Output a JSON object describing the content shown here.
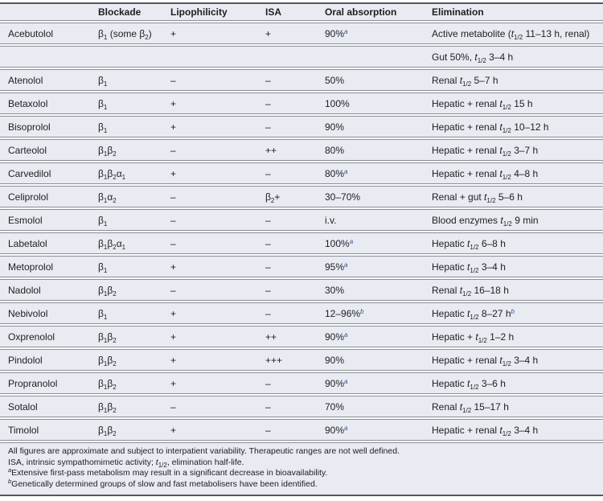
{
  "table": {
    "columns": [
      {
        "label": ""
      },
      {
        "label": "Blockade"
      },
      {
        "label": "Lipophilicity"
      },
      {
        "label": "ISA"
      },
      {
        "label": "Oral absorption"
      },
      {
        "label": "Elimination"
      }
    ],
    "rows": [
      {
        "cells": [
          "Acebutolol",
          "β~1~ (some β~2~)",
          "+",
          "+",
          "90%^a^",
          "Active metabolite (*t*~1/2~ 11–13 h, renal)"
        ]
      },
      {
        "cells": [
          "",
          "",
          "",
          "",
          "",
          "Gut 50%, *t*~1/2~ 3–4 h"
        ]
      },
      {
        "cells": [
          "Atenolol",
          "β~1~",
          "–",
          "–",
          "50%",
          "Renal *t*~1/2~ 5–7 h"
        ]
      },
      {
        "cells": [
          "Betaxolol",
          "β~1~",
          "+",
          "–",
          "100%",
          "Hepatic + renal *t*~1/2~ 15 h"
        ]
      },
      {
        "cells": [
          "Bisoprolol",
          "β~1~",
          "+",
          "–",
          "90%",
          "Hepatic + renal *t*~1/2~ 10–12 h"
        ]
      },
      {
        "cells": [
          "Carteolol",
          "β~1~β~2~",
          "–",
          "++",
          "80%",
          "Hepatic + renal *t*~1/2~ 3–7 h"
        ]
      },
      {
        "cells": [
          "Carvedilol",
          "β~1~β~2~α~1~",
          "+",
          "–",
          "80%^a^",
          "Hepatic + renal *t*~1/2~ 4–8 h"
        ]
      },
      {
        "cells": [
          "Celiprolol",
          "β~1~α~2~",
          "–",
          "β~2~+",
          "30–70%",
          "Renal + gut *t*~1/2~ 5–6 h"
        ]
      },
      {
        "cells": [
          "Esmolol",
          "β~1~",
          "–",
          "–",
          "i.v.",
          "Blood enzymes *t*~1/2~ 9 min"
        ]
      },
      {
        "cells": [
          "Labetalol",
          "β~1~β~2~α~1~",
          "–",
          "–",
          "100%^a^",
          "Hepatic *t*~1/2~ 6–8 h"
        ]
      },
      {
        "cells": [
          "Metoprolol",
          "β~1~",
          "+",
          "–",
          "95%^a^",
          "Hepatic *t*~1/2~ 3–4 h"
        ]
      },
      {
        "cells": [
          "Nadolol",
          "β~1~β~2~",
          "–",
          "–",
          "30%",
          "Renal *t*~1/2~ 16–18 h"
        ]
      },
      {
        "cells": [
          "Nebivolol",
          "β~1~",
          "+",
          "–",
          "12–96%^b^",
          "Hepatic *t*~1/2~ 8–27 h^b^"
        ]
      },
      {
        "cells": [
          "Oxprenolol",
          "β~1~β~2~",
          "+",
          "++",
          "90%^a^",
          "Hepatic + *t*~1/2~ 1–2 h"
        ]
      },
      {
        "cells": [
          "Pindolol",
          "β~1~β~2~",
          "+",
          "+++",
          "90%",
          "Hepatic + renal *t*~1/2~ 3–4 h"
        ]
      },
      {
        "cells": [
          "Propranolol",
          "β~1~β~2~",
          "+",
          "–",
          "90%^a^",
          "Hepatic *t*~1/2~ 3–6 h"
        ]
      },
      {
        "cells": [
          "Sotalol",
          "β~1~β~2~",
          "–",
          "–",
          "70%",
          "Renal *t*~1/2~ 15–17 h"
        ]
      },
      {
        "cells": [
          "Timolol",
          "β~1~β~2~",
          "+",
          "–",
          "90%^a^",
          "Hepatic + renal *t*~1/2~ 3–4 h"
        ]
      }
    ],
    "notes": [
      "All figures are approximate and subject to interpatient variability. Therapeutic ranges are not well defined.",
      "ISA, intrinsic sympathomimetic activity; *t*~1/2~, elimination half-life.",
      "^a^Extensive first-pass metabolism may result in a significant decrease in bioavailability.",
      "^b^Genetically determined groups of slow and fast metabolisers have been identified."
    ]
  },
  "colors": {
    "row_bg": "#e8ebf2",
    "rule": "#898d94",
    "heavy_rule": "#54575c",
    "text": "#1d1e20",
    "sup_blue": "#35509e"
  }
}
